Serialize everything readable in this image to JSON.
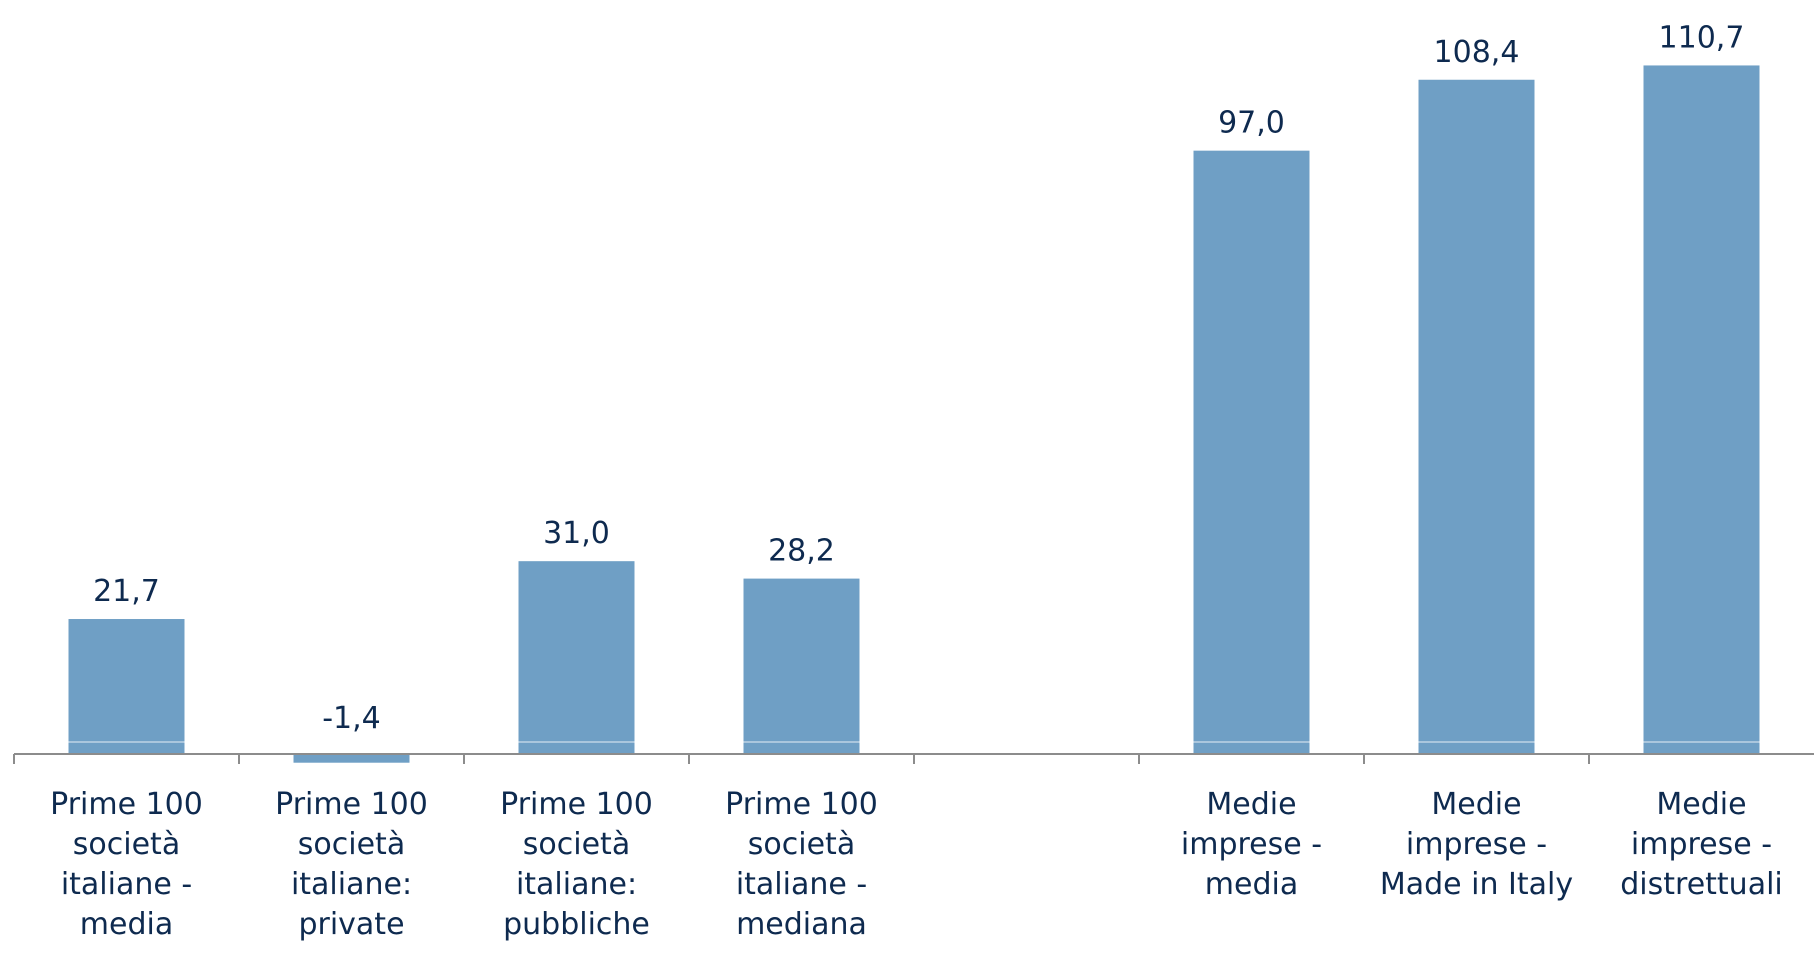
{
  "colors": {
    "bar": "#6f9fc5",
    "text": "#0e2a4f",
    "axis": "#8c8c8c"
  },
  "chart_data": {
    "type": "bar",
    "title": "",
    "xlabel": "",
    "ylabel": "",
    "ylim": [
      -2,
      112
    ],
    "grid": false,
    "legend": "none",
    "categories": [
      [
        "Prime 100",
        "società",
        "italiane -",
        "media"
      ],
      [
        "Prime 100",
        "società",
        "italiane:",
        "private"
      ],
      [
        "Prime 100",
        "società",
        "italiane:",
        "pubbliche"
      ],
      [
        "Prime 100",
        "società",
        "italiane -",
        "mediana"
      ],
      [],
      [
        "Medie",
        "imprese -",
        "media"
      ],
      [
        "Medie",
        "imprese -",
        "Made in Italy"
      ],
      [
        "Medie",
        "imprese -",
        "distrettuali"
      ]
    ],
    "values": [
      21.7,
      -1.4,
      31.0,
      28.2,
      null,
      97.0,
      108.4,
      110.7
    ],
    "value_labels": [
      "21,7",
      "-1,4",
      "31,0",
      "28,2",
      "",
      "97,0",
      "108,4",
      "110,7"
    ]
  }
}
